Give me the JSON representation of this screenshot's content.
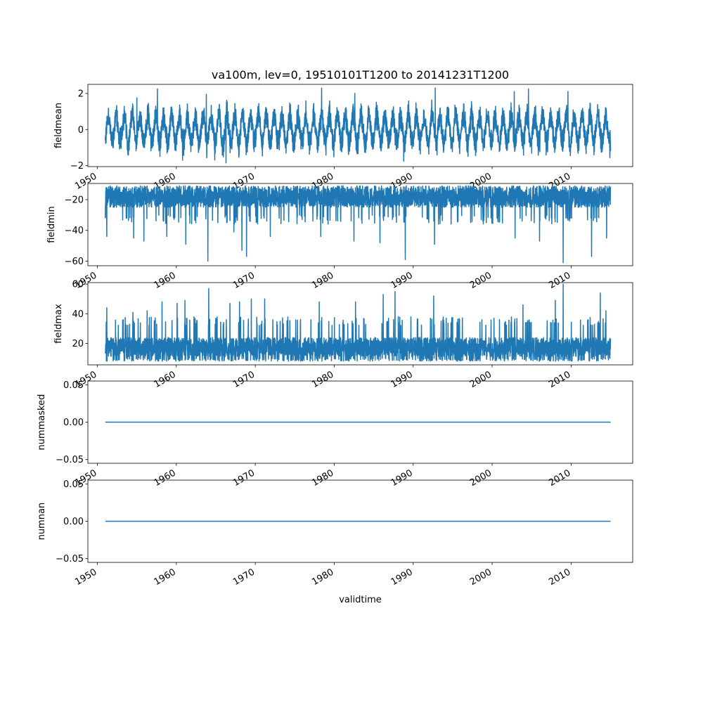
{
  "figure": {
    "title": "va100m, lev=0, 19510101T1200 to 20141231T1200",
    "xlabel": "validtime",
    "line_color": "#1f77b4"
  },
  "chart_data": [
    {
      "type": "line",
      "ylabel": "fieldmean",
      "xlim": [
        1948.8,
        2017.8
      ],
      "ylim": [
        -2.05,
        2.5
      ],
      "yticks": [
        -2,
        0,
        2
      ],
      "ytick_labels": [
        "−2",
        "0",
        "2"
      ],
      "xticks": [
        1950,
        1960,
        1970,
        1980,
        1990,
        2000,
        2010
      ],
      "xtick_labels": [
        "1950",
        "1960",
        "1970",
        "1980",
        "1990",
        "2000",
        "2010"
      ],
      "x_range": [
        1951.0,
        2015.0
      ],
      "series": [
        {
          "kind": "noisy-seasonal",
          "base": 0.0,
          "band": [
            -0.9,
            0.9
          ],
          "envelope": [
            -1.75,
            2.25
          ],
          "spikes": [
            {
              "x": 1955.0,
              "y": 1.75
            },
            {
              "x": 1957.6,
              "y": 2.25
            },
            {
              "x": 1960.8,
              "y": -1.7
            },
            {
              "x": 1963.8,
              "y": 1.95
            },
            {
              "x": 1978.4,
              "y": 2.3
            },
            {
              "x": 1982.6,
              "y": 2.0
            },
            {
              "x": 1988.8,
              "y": -1.75
            },
            {
              "x": 1992.8,
              "y": 2.3
            },
            {
              "x": 2002.8,
              "y": 2.1
            },
            {
              "x": 2004.6,
              "y": 2.25
            },
            {
              "x": 2009.6,
              "y": 2.1
            },
            {
              "x": 1966.3,
              "y": -1.85
            }
          ]
        }
      ]
    },
    {
      "type": "line",
      "ylabel": "fieldmin",
      "xlim": [
        1948.8,
        2017.8
      ],
      "ylim": [
        -63.0,
        -9.5
      ],
      "yticks": [
        -60,
        -40,
        -20
      ],
      "ytick_labels": [
        "−60",
        "−40",
        "−20"
      ],
      "xticks": [
        1950,
        1960,
        1970,
        1980,
        1990,
        2000,
        2010
      ],
      "xtick_labels": [
        "1950",
        "1960",
        "1970",
        "1980",
        "1990",
        "2000",
        "2010"
      ],
      "x_range": [
        1951.0,
        2015.0
      ],
      "series": [
        {
          "kind": "noisy-dips",
          "base": -20.0,
          "band": [
            -25.0,
            -13.0
          ],
          "envelope": [
            -12.0,
            -30.0
          ],
          "spikes": [
            {
              "x": 1951.2,
              "y": -44.0
            },
            {
              "x": 1954.6,
              "y": -45.0
            },
            {
              "x": 1955.9,
              "y": -47.0
            },
            {
              "x": 1958.8,
              "y": -44.0
            },
            {
              "x": 1961.2,
              "y": -49.0
            },
            {
              "x": 1964.0,
              "y": -60.0
            },
            {
              "x": 1967.3,
              "y": -41.0
            },
            {
              "x": 1968.3,
              "y": -53.0
            },
            {
              "x": 1968.9,
              "y": -57.0
            },
            {
              "x": 1971.9,
              "y": -44.0
            },
            {
              "x": 1978.3,
              "y": -44.0
            },
            {
              "x": 1982.5,
              "y": -47.0
            },
            {
              "x": 1985.8,
              "y": -48.0
            },
            {
              "x": 1989.0,
              "y": -59.0
            },
            {
              "x": 1992.7,
              "y": -49.0
            },
            {
              "x": 2002.9,
              "y": -45.0
            },
            {
              "x": 2006.0,
              "y": -47.0
            },
            {
              "x": 2009.0,
              "y": -61.0
            },
            {
              "x": 2012.6,
              "y": -57.0
            },
            {
              "x": 2014.5,
              "y": -45.0
            }
          ]
        }
      ]
    },
    {
      "type": "line",
      "ylabel": "fieldmax",
      "xlim": [
        1948.8,
        2017.8
      ],
      "ylim": [
        5.5,
        61.0
      ],
      "yticks": [
        20,
        40,
        60
      ],
      "ytick_labels": [
        "20",
        "40",
        "60"
      ],
      "xticks": [
        1950,
        1960,
        1970,
        1980,
        1990,
        2000,
        2010
      ],
      "xtick_labels": [
        "1950",
        "1960",
        "1970",
        "1980",
        "1990",
        "2000",
        "2010"
      ],
      "x_range": [
        1951.0,
        2015.0
      ],
      "series": [
        {
          "kind": "noisy-peaks",
          "base": 17.0,
          "band": [
            11.0,
            24.0
          ],
          "envelope": [
            9.0,
            32.0
          ],
          "spikes": [
            {
              "x": 1951.2,
              "y": 44.0
            },
            {
              "x": 1954.5,
              "y": 41.0
            },
            {
              "x": 1956.3,
              "y": 42.0
            },
            {
              "x": 1958.2,
              "y": 48.0
            },
            {
              "x": 1960.1,
              "y": 47.0
            },
            {
              "x": 1961.1,
              "y": 49.0
            },
            {
              "x": 1964.1,
              "y": 57.0
            },
            {
              "x": 1966.8,
              "y": 47.0
            },
            {
              "x": 1968.0,
              "y": 48.0
            },
            {
              "x": 1969.5,
              "y": 50.0
            },
            {
              "x": 1971.2,
              "y": 50.0
            },
            {
              "x": 1978.1,
              "y": 48.0
            },
            {
              "x": 1982.7,
              "y": 48.0
            },
            {
              "x": 1986.2,
              "y": 53.0
            },
            {
              "x": 1987.7,
              "y": 55.0
            },
            {
              "x": 1992.6,
              "y": 52.0
            },
            {
              "x": 2003.9,
              "y": 46.0
            },
            {
              "x": 2008.0,
              "y": 49.0
            },
            {
              "x": 2009.0,
              "y": 60.0
            },
            {
              "x": 2013.7,
              "y": 54.0
            },
            {
              "x": 2014.4,
              "y": 42.0
            }
          ]
        }
      ]
    },
    {
      "type": "line",
      "ylabel": "nummasked",
      "xlim": [
        1948.8,
        2017.8
      ],
      "ylim": [
        -0.055,
        0.055
      ],
      "yticks": [
        -0.05,
        0.0,
        0.05
      ],
      "ytick_labels": [
        "−0.05",
        "0.00",
        "0.05"
      ],
      "xticks": [
        1950,
        1960,
        1970,
        1980,
        1990,
        2000,
        2010
      ],
      "xtick_labels": [
        "1950",
        "1960",
        "1970",
        "1980",
        "1990",
        "2000",
        "2010"
      ],
      "x_range": [
        1951.0,
        2015.0
      ],
      "series": [
        {
          "kind": "constant",
          "base": 0.0
        }
      ]
    },
    {
      "type": "line",
      "ylabel": "numnan",
      "xlim": [
        1948.8,
        2017.8
      ],
      "ylim": [
        -0.055,
        0.055
      ],
      "yticks": [
        -0.05,
        0.0,
        0.05
      ],
      "ytick_labels": [
        "−0.05",
        "0.00",
        "0.05"
      ],
      "xticks": [
        1950,
        1960,
        1970,
        1980,
        1990,
        2000,
        2010
      ],
      "xtick_labels": [
        "1950",
        "1960",
        "1970",
        "1980",
        "1990",
        "2000",
        "2010"
      ],
      "x_range": [
        1951.0,
        2015.0
      ],
      "series": [
        {
          "kind": "constant",
          "base": 0.0
        }
      ]
    }
  ]
}
